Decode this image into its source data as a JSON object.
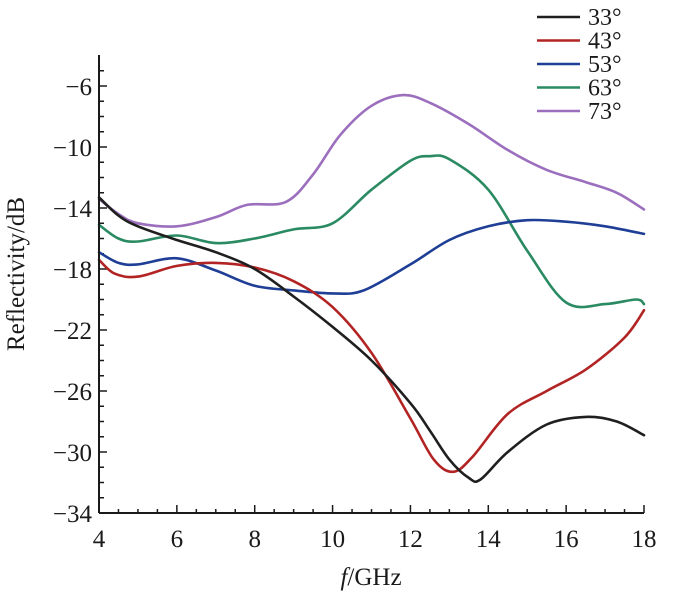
{
  "chart_data": {
    "type": "line",
    "xlabel_italic": "f",
    "xlabel_rest": "/GHz",
    "ylabel": "Reflectivity/dB",
    "xlim": [
      4,
      18
    ],
    "ylim": [
      -34,
      -4
    ],
    "xticks": [
      4,
      6,
      8,
      10,
      12,
      14,
      16,
      18
    ],
    "yticks": [
      -6,
      -10,
      -14,
      -18,
      -22,
      -26,
      -30,
      -34
    ],
    "grid": false,
    "legend_position": "top-right",
    "series": [
      {
        "name": "33°",
        "color": "#1f1f1f",
        "x": [
          4,
          4.5,
          5,
          6,
          7,
          8,
          9,
          10,
          11,
          12,
          12.5,
          13,
          13.5,
          13.8,
          14.5,
          15.5,
          16.5,
          17.3,
          18
        ],
        "y": [
          -13.3,
          -14.5,
          -15.2,
          -16.1,
          -16.9,
          -18.0,
          -19.8,
          -21.8,
          -24.0,
          -26.8,
          -28.6,
          -30.5,
          -31.7,
          -31.8,
          -30.0,
          -28.2,
          -27.7,
          -28.0,
          -28.9
        ]
      },
      {
        "name": "43°",
        "color": "#b22424",
        "x": [
          4,
          4.4,
          5,
          6,
          7,
          8,
          9,
          10,
          11,
          12,
          12.6,
          13.1,
          13.6,
          14.5,
          15.5,
          16.5,
          17.5,
          18
        ],
        "y": [
          -17.4,
          -18.3,
          -18.5,
          -17.8,
          -17.6,
          -17.9,
          -18.8,
          -20.5,
          -23.5,
          -27.8,
          -30.5,
          -31.3,
          -30.3,
          -27.5,
          -26.0,
          -24.6,
          -22.5,
          -20.7
        ]
      },
      {
        "name": "53°",
        "color": "#1f3f96",
        "x": [
          4,
          4.5,
          5,
          6,
          7,
          8,
          9,
          10,
          10.8,
          12,
          13,
          14,
          15,
          16,
          17,
          18
        ],
        "y": [
          -16.9,
          -17.6,
          -17.7,
          -17.3,
          -18.1,
          -19.1,
          -19.4,
          -19.6,
          -19.4,
          -17.7,
          -16.1,
          -15.2,
          -14.8,
          -14.9,
          -15.2,
          -15.7
        ]
      },
      {
        "name": "63°",
        "color": "#2a8a62",
        "x": [
          4,
          4.5,
          5,
          6,
          7,
          8,
          9,
          10,
          11,
          12,
          12.5,
          13,
          14,
          15,
          16,
          17,
          17.8,
          18
        ],
        "y": [
          -15.1,
          -16.0,
          -16.2,
          -15.8,
          -16.3,
          -16.0,
          -15.4,
          -15.0,
          -12.8,
          -10.9,
          -10.6,
          -10.8,
          -12.8,
          -16.8,
          -20.2,
          -20.3,
          -20.0,
          -20.3
        ]
      },
      {
        "name": "73°",
        "color": "#9b6fbd",
        "x": [
          4,
          4.5,
          5,
          6,
          7,
          7.8,
          8.8,
          9.5,
          10.2,
          11,
          11.8,
          12.5,
          13.5,
          14.5,
          15.5,
          16.5,
          17.3,
          18
        ],
        "y": [
          -13.4,
          -14.4,
          -15.0,
          -15.2,
          -14.6,
          -13.8,
          -13.6,
          -11.8,
          -9.2,
          -7.3,
          -6.6,
          -7.1,
          -8.5,
          -10.2,
          -11.5,
          -12.3,
          -13.0,
          -14.1
        ]
      }
    ]
  }
}
